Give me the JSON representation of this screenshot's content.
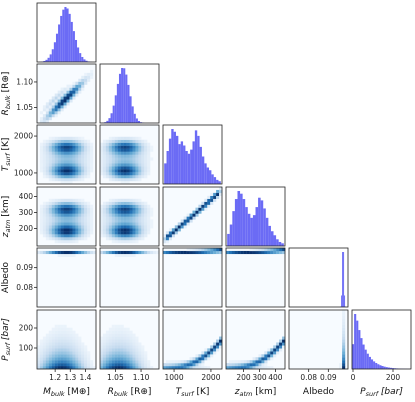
{
  "chart_data": {
    "type": "corner",
    "title": "",
    "parameters": [
      {
        "key": "mbulk",
        "label": "M_bulk [M⊕]",
        "base": "M",
        "sub": "bulk",
        "unit": " [M⊕]",
        "italic_unit": false,
        "range": [
          1.08,
          1.47
        ],
        "ticks": [
          1.2,
          1.3,
          1.4
        ],
        "tick_labels": [
          "1.2",
          "1.3",
          "1.4"
        ],
        "marginal": {
          "mean": 1.27,
          "sd": 0.05
        }
      },
      {
        "key": "rbulk",
        "label": "R_bulk [R⊕]",
        "base": "R",
        "sub": "bulk",
        "unit": " [R⊕]",
        "italic_unit": false,
        "range": [
          1.02,
          1.135
        ],
        "ticks": [
          1.05,
          1.1
        ],
        "tick_labels": [
          "1.05",
          "1.10"
        ],
        "marginal": {
          "mean": 1.065,
          "sd": 0.012
        }
      },
      {
        "key": "tsurf",
        "label": "T_surf [K]",
        "base": "T",
        "sub": "surf",
        "unit": " [K]",
        "italic_unit": false,
        "range": [
          700,
          2300
        ],
        "ticks": [
          1000,
          2000
        ],
        "tick_labels": [
          "1000",
          "2000"
        ],
        "marginal": {
          "hist": [
            0.3,
            0.48,
            0.66,
            0.8,
            0.76,
            0.7,
            0.58,
            0.62,
            0.56,
            0.48,
            0.44,
            0.5,
            0.62,
            0.78,
            0.7,
            0.54,
            0.4,
            0.3,
            0.24,
            0.2,
            0.14,
            0.1,
            0.06,
            0.04
          ]
        }
      },
      {
        "key": "zatm",
        "label": "z_atm [km]",
        "base": "z",
        "sub": "atm",
        "unit": " [km]",
        "italic_unit": false,
        "range": [
          90,
          460
        ],
        "ticks": [
          200,
          300,
          400
        ],
        "tick_labels": [
          "200",
          "300",
          "400"
        ],
        "marginal": {
          "hist": [
            0.18,
            0.32,
            0.52,
            0.7,
            0.82,
            0.78,
            0.7,
            0.58,
            0.48,
            0.42,
            0.46,
            0.58,
            0.72,
            0.68,
            0.56,
            0.42,
            0.3,
            0.22,
            0.16,
            0.1,
            0.06,
            0.04
          ]
        }
      },
      {
        "key": "albedo",
        "label": "Albedo",
        "base": "Albedo",
        "sub": "",
        "unit": "",
        "italic_unit": false,
        "range": [
          0.07,
          0.1
        ],
        "ticks": [
          0.08,
          0.09
        ],
        "tick_labels": [
          "0.08",
          "0.09"
        ],
        "marginal": {
          "mean": 0.0975,
          "sd": 0.0004
        }
      },
      {
        "key": "psurf",
        "label": "P_surf [bar]",
        "base": "P",
        "sub": "surf",
        "unit": " [bar]",
        "italic_unit": true,
        "range": [
          -5,
          290
        ],
        "ticks": [
          0,
          200
        ],
        "tick_labels": [
          "0",
          "200"
        ],
        "marginal": {
          "decay": 45
        }
      }
    ],
    "y_tick_labels": {
      "rbulk": {
        "ticks": [
          1.05,
          1.1
        ],
        "tick_labels": [
          "1.05",
          "1.10"
        ]
      },
      "tsurf": {
        "ticks": [
          1000,
          2000
        ],
        "tick_labels": [
          "1000",
          "2000"
        ]
      },
      "zatm": {
        "ticks": [
          200,
          300,
          400
        ],
        "tick_labels": [
          "200",
          "300",
          "400"
        ]
      },
      "albedo": {
        "ticks": [
          0.08,
          0.09
        ],
        "tick_labels": [
          "0.08",
          "0.09"
        ]
      },
      "psurf": {
        "ticks": [
          100,
          200
        ],
        "tick_labels": [
          "100",
          "200"
        ]
      }
    },
    "histogram_color": "#6b6bf5",
    "density_colormap": [
      "#f7fbff",
      "#c6dbef",
      "#6baed6",
      "#2171b5",
      "#08306b"
    ]
  }
}
